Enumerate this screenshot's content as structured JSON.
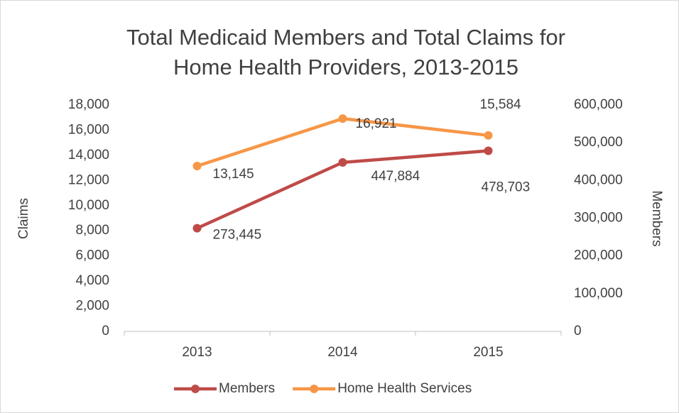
{
  "chart_data": {
    "type": "line",
    "title": [
      "Total Medicaid Members and Total Claims for",
      "Home Health Providers, 2013-2015"
    ],
    "categories": [
      "2013",
      "2014",
      "2015"
    ],
    "ylabel": "Claims",
    "y2label": "Members",
    "ylim": [
      0,
      18000
    ],
    "yticks": [
      0,
      {
        "value": 2000,
        "label": "2,000"
      },
      {
        "value": 4000,
        "label": "4,000"
      },
      {
        "value": 6000,
        "label": "6,000"
      },
      {
        "value": 8000,
        "label": "8,000"
      },
      {
        "value": 10000,
        "label": "10,000"
      },
      {
        "value": 12000,
        "label": "12,000"
      },
      {
        "value": 14000,
        "label": "14,000"
      },
      {
        "value": 16000,
        "label": "16,000"
      },
      {
        "value": 18000,
        "label": "18,000"
      }
    ],
    "y2lim": [
      0,
      600000
    ],
    "y2ticks": [
      0,
      {
        "value": 100000,
        "label": "100,000"
      },
      {
        "value": 200000,
        "label": "200,000"
      },
      {
        "value": 300000,
        "label": "300,000"
      },
      {
        "value": 400000,
        "label": "400,000"
      },
      {
        "value": 500000,
        "label": "500,000"
      },
      {
        "value": 600000,
        "label": "600,000"
      }
    ],
    "legend": "bottom",
    "series": [
      {
        "name": "Members",
        "color": "#be4b48",
        "axis": "y2",
        "values": [
          273445,
          447884,
          478703
        ],
        "value_labels": [
          "273,445",
          "447,884",
          "478,703"
        ]
      },
      {
        "name": "Home Health Services",
        "color": "#f79646",
        "values": [
          13145,
          16921,
          15584
        ],
        "value_labels": [
          "13,145",
          "16,921",
          "15,584"
        ]
      }
    ]
  }
}
